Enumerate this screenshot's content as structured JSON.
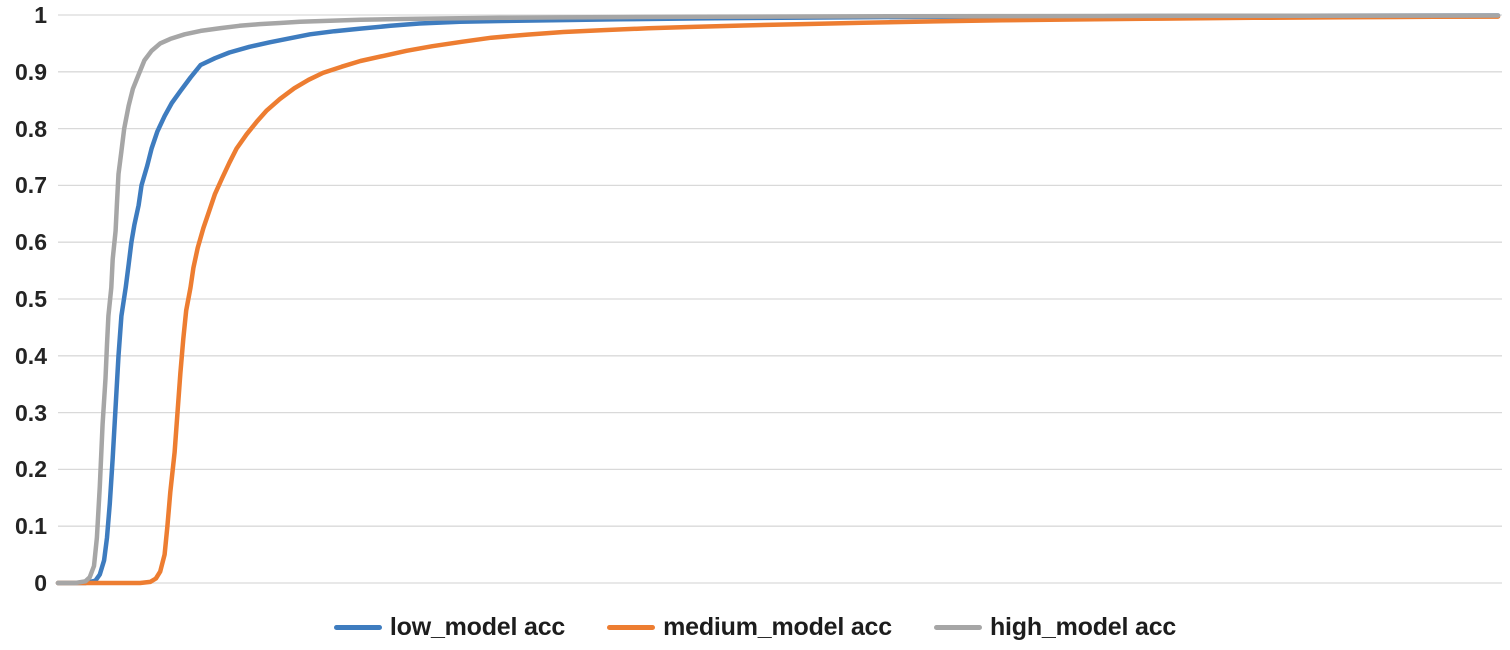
{
  "chart_data": {
    "type": "line",
    "title": "",
    "xlabel": "",
    "ylabel": "",
    "x_axis": {
      "tick_labels_visible": false,
      "range_normalized": [
        0,
        1
      ]
    },
    "y_axis": {
      "min": 0,
      "max": 1,
      "tick_labels": [
        "0",
        "0.1",
        "0.2",
        "0.3",
        "0.4",
        "0.5",
        "0.6",
        "0.7",
        "0.8",
        "0.9",
        "1"
      ]
    },
    "grid": "horizontal",
    "legend_position": "bottom",
    "series": [
      {
        "name": "low_model acc",
        "color": "#3E7CBF",
        "x": [
          0,
          0.019,
          0.026,
          0.029,
          0.032,
          0.034,
          0.036,
          0.038,
          0.04,
          0.042,
          0.044,
          0.047,
          0.049,
          0.051,
          0.053,
          0.056,
          0.058,
          0.062,
          0.065,
          0.069,
          0.074,
          0.079,
          0.085,
          0.092,
          0.099,
          0.109,
          0.119,
          0.133,
          0.147,
          0.161,
          0.175,
          0.192,
          0.21,
          0.231,
          0.251,
          0.279,
          0.307,
          0.349,
          0.39,
          0.446,
          0.515,
          0.585,
          0.654,
          0.724,
          0.793,
          0.863,
          0.932,
          1.0
        ],
        "y": [
          0,
          0,
          0.004,
          0.015,
          0.04,
          0.08,
          0.14,
          0.22,
          0.31,
          0.4,
          0.47,
          0.52,
          0.56,
          0.6,
          0.63,
          0.665,
          0.7,
          0.735,
          0.765,
          0.795,
          0.822,
          0.845,
          0.866,
          0.89,
          0.912,
          0.924,
          0.934,
          0.944,
          0.952,
          0.959,
          0.966,
          0.9715,
          0.976,
          0.981,
          0.985,
          0.988,
          0.9895,
          0.991,
          0.9925,
          0.994,
          0.9955,
          0.9965,
          0.9972,
          0.9978,
          0.9982,
          0.9986,
          0.9989,
          0.9992
        ]
      },
      {
        "name": "medium_model acc",
        "color": "#ED7D31",
        "x": [
          0,
          0.057,
          0.064,
          0.068,
          0.071,
          0.074,
          0.076,
          0.078,
          0.081,
          0.083,
          0.085,
          0.087,
          0.089,
          0.092,
          0.094,
          0.097,
          0.101,
          0.105,
          0.109,
          0.114,
          0.119,
          0.124,
          0.131,
          0.138,
          0.145,
          0.154,
          0.164,
          0.174,
          0.184,
          0.197,
          0.21,
          0.226,
          0.242,
          0.26,
          0.281,
          0.301,
          0.326,
          0.351,
          0.379,
          0.41,
          0.441,
          0.476,
          0.517,
          0.559,
          0.608,
          0.656,
          0.712,
          0.767,
          0.83,
          0.893,
          0.955,
          1.0
        ],
        "y": [
          0,
          0,
          0.002,
          0.008,
          0.02,
          0.05,
          0.1,
          0.16,
          0.23,
          0.3,
          0.37,
          0.43,
          0.48,
          0.52,
          0.555,
          0.59,
          0.625,
          0.655,
          0.685,
          0.713,
          0.74,
          0.765,
          0.79,
          0.812,
          0.832,
          0.852,
          0.871,
          0.886,
          0.898,
          0.909,
          0.919,
          0.928,
          0.937,
          0.945,
          0.953,
          0.96,
          0.9655,
          0.97,
          0.9735,
          0.9765,
          0.979,
          0.9815,
          0.984,
          0.9865,
          0.9888,
          0.9906,
          0.9922,
          0.9937,
          0.995,
          0.996,
          0.9968,
          0.9972
        ]
      },
      {
        "name": "high_model acc",
        "color": "#A6A6A6",
        "x": [
          0,
          0.012,
          0.019,
          0.022,
          0.025,
          0.027,
          0.029,
          0.031,
          0.033,
          0.034,
          0.035,
          0.037,
          0.038,
          0.04,
          0.041,
          0.042,
          0.044,
          0.046,
          0.049,
          0.052,
          0.056,
          0.06,
          0.065,
          0.071,
          0.078,
          0.088,
          0.099,
          0.113,
          0.126,
          0.14,
          0.154,
          0.168,
          0.189,
          0.21,
          0.238,
          0.272,
          0.307,
          0.349,
          0.39,
          0.446,
          0.515,
          0.585,
          0.654,
          0.724,
          0.793,
          0.863,
          0.932,
          1.0
        ],
        "y": [
          0,
          0,
          0.003,
          0.01,
          0.03,
          0.08,
          0.17,
          0.28,
          0.36,
          0.42,
          0.47,
          0.52,
          0.57,
          0.62,
          0.67,
          0.72,
          0.76,
          0.8,
          0.84,
          0.87,
          0.895,
          0.92,
          0.937,
          0.95,
          0.958,
          0.966,
          0.972,
          0.977,
          0.981,
          0.984,
          0.986,
          0.988,
          0.99,
          0.9915,
          0.993,
          0.994,
          0.995,
          0.9958,
          0.9963,
          0.997,
          0.9974,
          0.9978,
          0.998,
          0.9983,
          0.9986,
          0.9988,
          0.999,
          0.9992
        ]
      }
    ],
    "colors": {
      "grid": "#D9D9D9",
      "tick_text": "#242424",
      "legend_text": "#1D1D1D",
      "background": "#FFFFFF"
    }
  }
}
